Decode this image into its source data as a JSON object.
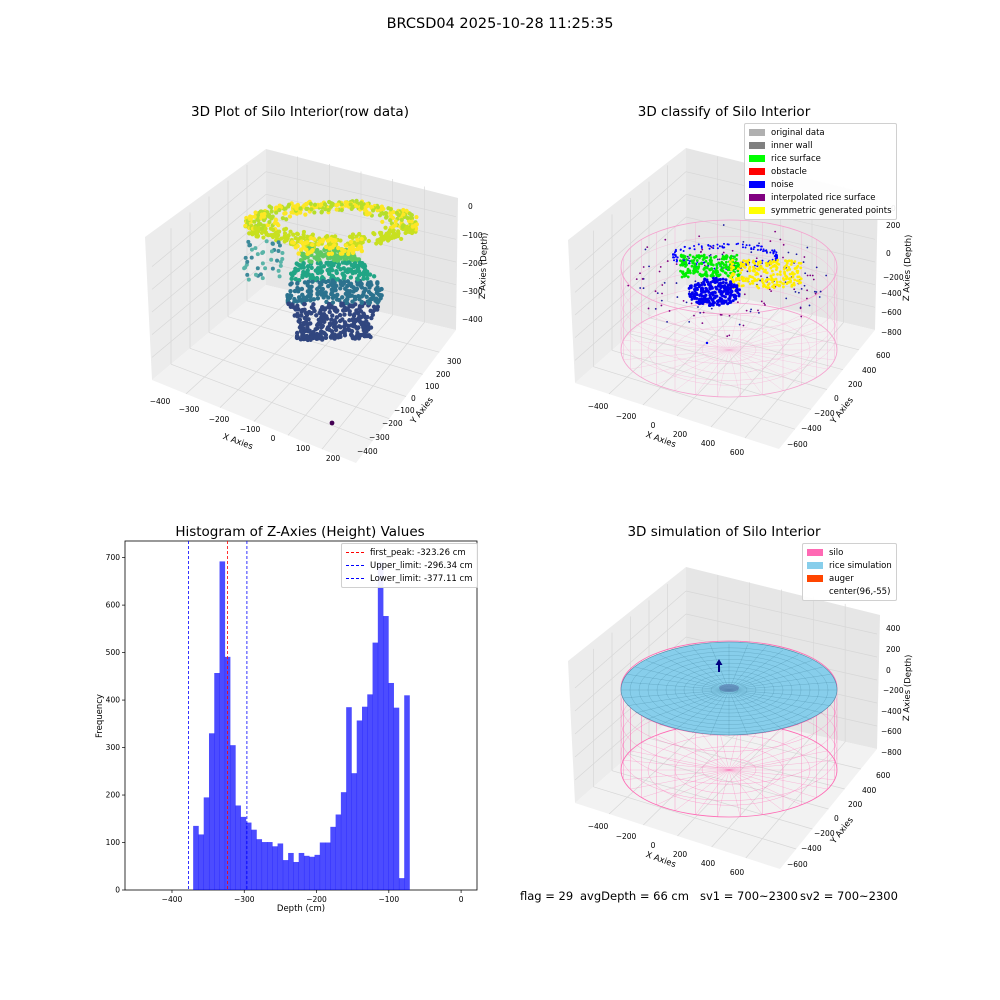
{
  "figure": {
    "title": "BRCSD04 2025-10-28 11:25:35",
    "status": {
      "flag": "flag = 29",
      "avg_depth": "avgDepth = 66 cm",
      "sv1": "sv1 = 700~2300",
      "sv2": "sv2 = 700~2300"
    }
  },
  "panels": {
    "p1": {
      "title": "3D Plot of Silo Interior(row data)",
      "xlabel": "X Axies",
      "ylabel": "Y Axies",
      "zlabel": "Z Axies (Depth)",
      "xticks": [
        "−400",
        "−300",
        "−200",
        "−100",
        "0",
        "100",
        "200"
      ],
      "yticks": [
        "300",
        "200",
        "100",
        "0",
        "−100",
        "−200",
        "−300",
        "−400"
      ],
      "zticks": [
        "0",
        "−100",
        "−200",
        "−300",
        "−400"
      ]
    },
    "p2": {
      "title": "3D classify of Silo Interior",
      "xlabel": "X Axies",
      "ylabel": "Y Axies",
      "zlabel": "Z Axies (Depth)",
      "xticks": [
        "−400",
        "−200",
        "0",
        "200",
        "400",
        "600"
      ],
      "yticks": [
        "600",
        "400",
        "200",
        "0",
        "−200",
        "−400",
        "−600"
      ],
      "zticks": [
        "200",
        "0",
        "−200",
        "−400",
        "−600",
        "−800"
      ],
      "ztick_top_partial": "0",
      "legend": [
        {
          "label": "original data",
          "color": "#b0b0b0"
        },
        {
          "label": "inner wall",
          "color": "#808080"
        },
        {
          "label": "rice surface",
          "color": "#00ff00"
        },
        {
          "label": "obstacle",
          "color": "#ff0000"
        },
        {
          "label": "noise",
          "color": "#0000ff"
        },
        {
          "label": "interpolated rice surface",
          "color": "#800080"
        },
        {
          "label": "symmetric generated points",
          "color": "#ffff00"
        }
      ]
    },
    "p4": {
      "title": "3D simulation of Silo Interior",
      "xlabel": "X Axies",
      "ylabel": "Y Axies",
      "zlabel": "Z Axies (Depth)",
      "xticks": [
        "−400",
        "−200",
        "0",
        "200",
        "400",
        "600"
      ],
      "yticks": [
        "600",
        "400",
        "200",
        "0",
        "−200",
        "−400",
        "−600"
      ],
      "zticks": [
        "400",
        "200",
        "0",
        "−200",
        "−400",
        "−600",
        "−800"
      ],
      "legend": [
        {
          "label": "silo",
          "color": "#ff69b4"
        },
        {
          "label": "rice simulation",
          "color": "#87ceeb"
        },
        {
          "label": "auger",
          "color": "#ff4500"
        },
        {
          "label": "center(96,-55)",
          "color": "none"
        }
      ]
    }
  },
  "chart_data": [
    {
      "type": "bar",
      "title": "Histogram of Z-Axies (Height) Values",
      "xlabel": "Depth (cm)",
      "ylabel": "Frequency",
      "xlim": [
        -465,
        22
      ],
      "ylim": [
        0,
        735
      ],
      "xticks": [
        -400,
        -300,
        -200,
        -100,
        0
      ],
      "xtick_labels": [
        "−400",
        "−300",
        "−200",
        "−100",
        "0"
      ],
      "yticks": [
        0,
        100,
        200,
        300,
        400,
        500,
        600,
        700
      ],
      "bar_color": "#0000ff",
      "bin_start": -370.7,
      "bin_width": 7.3,
      "values": [
        135,
        117,
        195,
        330,
        457,
        692,
        491,
        305,
        178,
        154,
        142,
        127,
        107,
        101,
        101,
        92,
        98,
        63,
        78,
        59,
        78,
        72,
        70,
        74,
        100,
        100,
        133,
        159,
        206,
        385,
        246,
        357,
        386,
        412,
        521,
        690,
        577,
        436,
        384,
        25,
        410
      ],
      "lines": [
        {
          "label": "first_peak: -323.26 cm",
          "x": -323.26,
          "color": "#ff0000"
        },
        {
          "label": "Upper_limit: -296.34 cm",
          "x": -296.34,
          "color": "#0000ff"
        },
        {
          "label": "Lower_limit: -377.11 cm",
          "x": -377.11,
          "color": "#0000ff"
        }
      ],
      "legend_position": "top-right"
    }
  ]
}
